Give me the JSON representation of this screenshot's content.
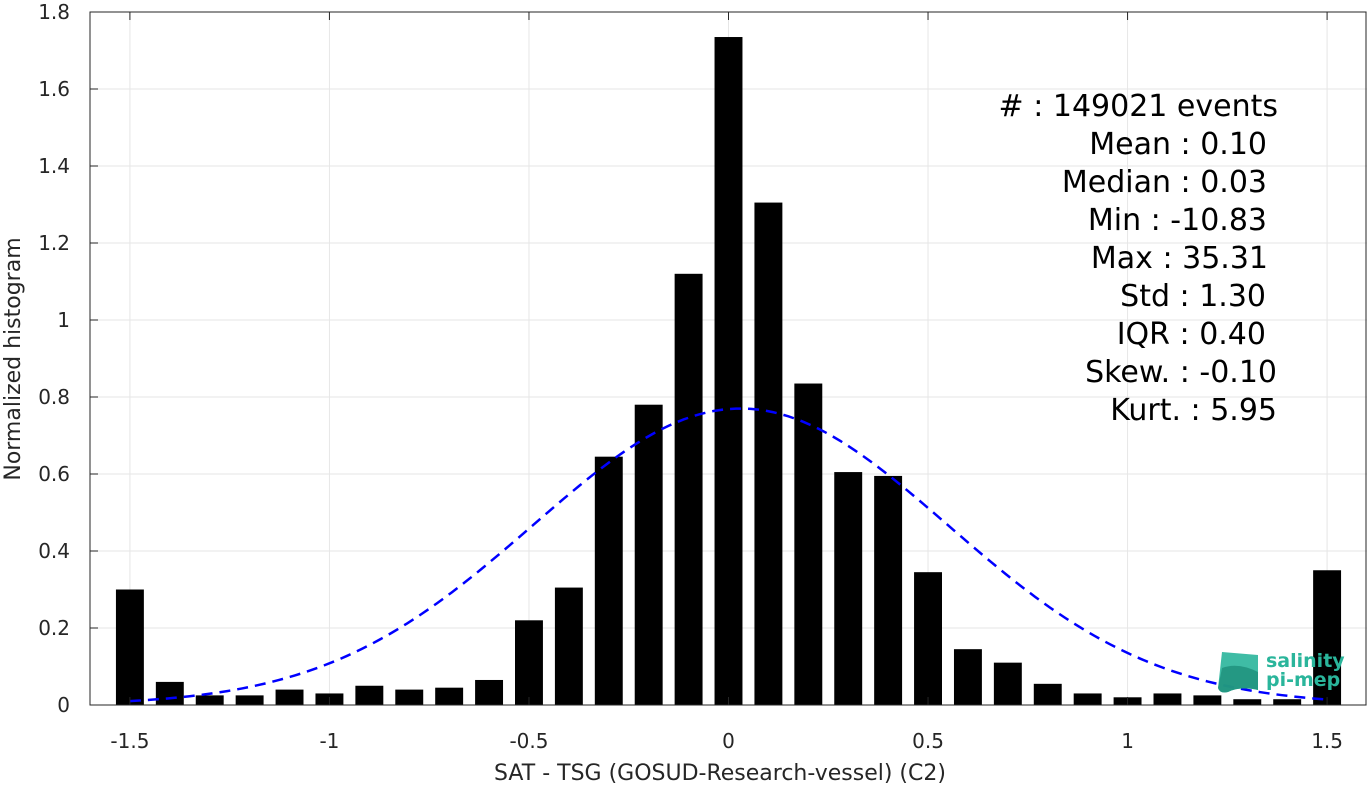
{
  "chart_data": {
    "type": "bar",
    "xlabel": "SAT - TSG (GOSUD-Research-vessel) (C2)",
    "ylabel": "Normalized histogram",
    "xlim": [
      -1.6,
      1.6
    ],
    "ylim": [
      0,
      1.8
    ],
    "xticks": [
      -1.5,
      -1,
      -0.5,
      0,
      0.5,
      1,
      1.5
    ],
    "xtick_labels": [
      "-1.5",
      "-1",
      "-0.5",
      "0",
      "0.5",
      "1",
      "1.5"
    ],
    "yticks": [
      0,
      0.2,
      0.4,
      0.6,
      0.8,
      1,
      1.2,
      1.4,
      1.6,
      1.8
    ],
    "ytick_labels": [
      "0",
      "0.2",
      "0.4",
      "0.6",
      "0.8",
      "1",
      "1.2",
      "1.4",
      "1.6",
      "1.8"
    ],
    "grid": true,
    "bar_color": "#000000",
    "bar_width": 0.07,
    "bars": [
      {
        "x": -1.5,
        "value": 0.3
      },
      {
        "x": -1.4,
        "value": 0.06
      },
      {
        "x": -1.3,
        "value": 0.025
      },
      {
        "x": -1.2,
        "value": 0.025
      },
      {
        "x": -1.1,
        "value": 0.04
      },
      {
        "x": -1.0,
        "value": 0.03
      },
      {
        "x": -0.9,
        "value": 0.05
      },
      {
        "x": -0.8,
        "value": 0.04
      },
      {
        "x": -0.7,
        "value": 0.045
      },
      {
        "x": -0.6,
        "value": 0.065
      },
      {
        "x": -0.5,
        "value": 0.22
      },
      {
        "x": -0.4,
        "value": 0.305
      },
      {
        "x": -0.3,
        "value": 0.645
      },
      {
        "x": -0.2,
        "value": 0.78
      },
      {
        "x": -0.1,
        "value": 1.12
      },
      {
        "x": 0.0,
        "value": 1.735
      },
      {
        "x": 0.1,
        "value": 1.305
      },
      {
        "x": 0.2,
        "value": 0.835
      },
      {
        "x": 0.3,
        "value": 0.605
      },
      {
        "x": 0.4,
        "value": 0.595
      },
      {
        "x": 0.5,
        "value": 0.345
      },
      {
        "x": 0.6,
        "value": 0.145
      },
      {
        "x": 0.7,
        "value": 0.11
      },
      {
        "x": 0.8,
        "value": 0.055
      },
      {
        "x": 0.9,
        "value": 0.03
      },
      {
        "x": 1.0,
        "value": 0.02
      },
      {
        "x": 1.1,
        "value": 0.03
      },
      {
        "x": 1.2,
        "value": 0.025
      },
      {
        "x": 1.3,
        "value": 0.015
      },
      {
        "x": 1.4,
        "value": 0.015
      },
      {
        "x": 1.5,
        "value": 0.35
      }
    ],
    "fit_curve": {
      "type": "gaussian",
      "peak": 0.77,
      "mean": 0.03,
      "sigma": 0.52,
      "x_range": [
        -1.5,
        1.5
      ],
      "color": "#0000ff",
      "style": "dashed"
    },
    "stats": [
      "#  : 149021 events",
      "Mean : 0.10",
      "Median : 0.03",
      "Min : -10.83",
      "Max : 35.31",
      "Std : 1.30",
      "IQR : 0.40",
      "Skew. : -0.10",
      "Kurt. : 5.95"
    ],
    "stats_placement": "top-right"
  },
  "logo": {
    "line1": "salinity",
    "line2": "pi-mep",
    "color": "#2ab59b"
  }
}
